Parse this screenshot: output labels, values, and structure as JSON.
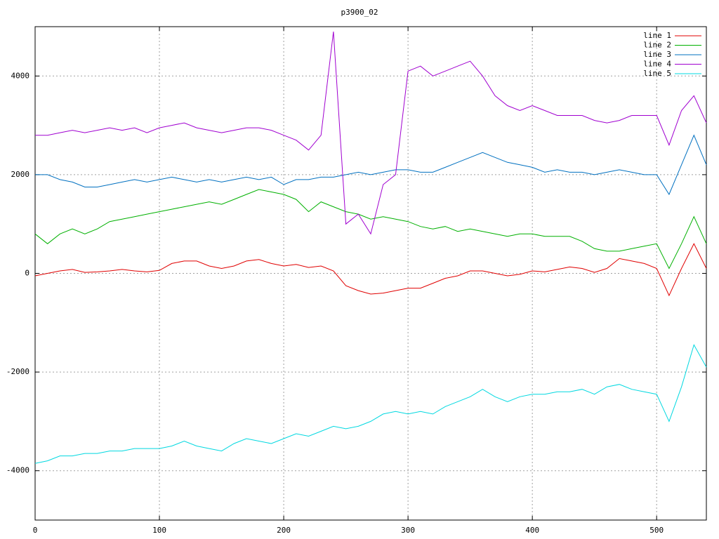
{
  "chart_data": {
    "type": "line",
    "title": "p3900_02",
    "x": [
      0,
      10,
      20,
      30,
      40,
      50,
      60,
      70,
      80,
      90,
      100,
      110,
      120,
      130,
      140,
      150,
      160,
      170,
      180,
      190,
      200,
      210,
      220,
      230,
      240,
      250,
      260,
      270,
      280,
      290,
      300,
      310,
      320,
      330,
      340,
      350,
      360,
      370,
      380,
      390,
      400,
      410,
      420,
      430,
      440,
      450,
      460,
      470,
      480,
      490,
      500,
      510,
      520,
      530,
      540
    ],
    "xlim": [
      0,
      540
    ],
    "ylim": [
      -5000,
      5000
    ],
    "xticks": [
      0,
      100,
      200,
      300,
      400,
      500
    ],
    "yticks": [
      -4000,
      -2000,
      0,
      2000,
      4000
    ],
    "grid": true,
    "legend": "top-right",
    "series": [
      {
        "name": "line 1",
        "color": "#e00000",
        "values": [
          -50,
          0,
          50,
          80,
          20,
          30,
          50,
          80,
          50,
          30,
          60,
          200,
          250,
          250,
          150,
          100,
          150,
          250,
          280,
          200,
          150,
          180,
          120,
          150,
          50,
          -250,
          -350,
          -420,
          -400,
          -350,
          -300,
          -300,
          -200,
          -100,
          -50,
          50,
          50,
          0,
          -50,
          -20,
          50,
          30,
          80,
          130,
          100,
          20,
          100,
          300,
          250,
          200,
          100,
          -450,
          100,
          600,
          100
        ]
      },
      {
        "name": "line 2",
        "color": "#00b000",
        "values": [
          800,
          600,
          800,
          900,
          800,
          900,
          1050,
          1100,
          1150,
          1200,
          1250,
          1300,
          1350,
          1400,
          1450,
          1400,
          1500,
          1600,
          1700,
          1650,
          1600,
          1500,
          1250,
          1450,
          1350,
          1250,
          1200,
          1100,
          1150,
          1100,
          1050,
          950,
          900,
          950,
          850,
          900,
          850,
          800,
          750,
          800,
          800,
          750,
          750,
          750,
          650,
          500,
          450,
          450,
          500,
          550,
          600,
          100,
          600,
          1150,
          600
        ]
      },
      {
        "name": "line 3",
        "color": "#0070c0",
        "values": [
          2000,
          2000,
          1900,
          1850,
          1750,
          1750,
          1800,
          1850,
          1900,
          1850,
          1900,
          1950,
          1900,
          1850,
          1900,
          1850,
          1900,
          1950,
          1900,
          1950,
          1800,
          1900,
          1900,
          1950,
          1950,
          2000,
          2050,
          2000,
          2050,
          2100,
          2100,
          2050,
          2050,
          2150,
          2250,
          2350,
          2450,
          2350,
          2250,
          2200,
          2150,
          2050,
          2100,
          2050,
          2050,
          2000,
          2050,
          2100,
          2050,
          2000,
          2000,
          1600,
          2200,
          2800,
          2200
        ]
      },
      {
        "name": "line 4",
        "color": "#a000d0",
        "values": [
          2800,
          2800,
          2850,
          2900,
          2850,
          2900,
          2950,
          2900,
          2950,
          2850,
          2950,
          3000,
          3050,
          2950,
          2900,
          2850,
          2900,
          2950,
          2950,
          2900,
          2800,
          2700,
          2500,
          2800,
          4900,
          1000,
          1200,
          800,
          1800,
          2000,
          4100,
          4200,
          4000,
          4100,
          4200,
          4300,
          4000,
          3600,
          3400,
          3300,
          3400,
          3300,
          3200,
          3200,
          3200,
          3100,
          3050,
          3100,
          3200,
          3200,
          3200,
          2600,
          3300,
          3600,
          3050
        ]
      },
      {
        "name": "line 5",
        "color": "#00d8e0",
        "values": [
          -3850,
          -3800,
          -3700,
          -3700,
          -3650,
          -3650,
          -3600,
          -3600,
          -3550,
          -3550,
          -3550,
          -3500,
          -3400,
          -3500,
          -3550,
          -3600,
          -3450,
          -3350,
          -3400,
          -3450,
          -3350,
          -3250,
          -3300,
          -3200,
          -3100,
          -3150,
          -3100,
          -3000,
          -2850,
          -2800,
          -2850,
          -2800,
          -2850,
          -2700,
          -2600,
          -2500,
          -2350,
          -2500,
          -2600,
          -2500,
          -2450,
          -2450,
          -2400,
          -2400,
          -2350,
          -2450,
          -2300,
          -2250,
          -2350,
          -2400,
          -2450,
          -3000,
          -2300,
          -1450,
          -1900
        ]
      }
    ]
  }
}
